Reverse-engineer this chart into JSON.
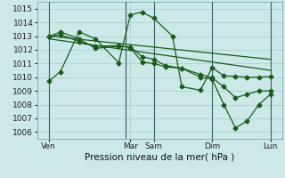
{
  "bg_color": "#cce8e8",
  "grid_color": "#aacccc",
  "line_color": "#1a5c1a",
  "vline_color": "#3a6060",
  "xlabel": "Pression niveau de la mer( hPa )",
  "ylim": [
    1005.5,
    1015.5
  ],
  "xlim": [
    0,
    10.5
  ],
  "yticks": [
    1006,
    1007,
    1008,
    1009,
    1010,
    1011,
    1012,
    1013,
    1014,
    1015
  ],
  "xtick_labels": [
    "Ven",
    "Mar",
    "Sam",
    "Dim",
    "Lun"
  ],
  "xtick_pos": [
    0.5,
    4.0,
    5.0,
    7.5,
    10.0
  ],
  "vlines_x": [
    0.5,
    3.8,
    5.0,
    7.5,
    10.0
  ],
  "lines": [
    {
      "x": [
        0.5,
        1.0,
        1.8,
        2.5,
        3.5,
        4.0,
        4.5,
        5.0,
        5.8,
        6.2,
        7.0,
        7.5,
        8.0,
        8.5,
        9.0,
        9.5,
        10.0
      ],
      "y": [
        1009.7,
        1010.4,
        1013.3,
        1012.8,
        1011.05,
        1014.55,
        1014.75,
        1014.3,
        1013.0,
        1009.3,
        1009.05,
        1010.7,
        1010.1,
        1010.05,
        1010.0,
        1010.0,
        1010.05
      ],
      "marker": true
    },
    {
      "x": [
        0.5,
        1.0,
        1.8,
        2.5,
        3.5,
        4.0,
        4.5,
        5.0,
        5.5,
        6.2,
        7.0,
        7.5,
        8.0,
        8.5,
        9.0,
        9.5,
        10.0
      ],
      "y": [
        1012.95,
        1013.1,
        1012.6,
        1012.25,
        1012.3,
        1012.15,
        1011.1,
        1011.0,
        1010.75,
        1010.65,
        1010.0,
        1009.85,
        1008.0,
        1006.3,
        1006.8,
        1008.0,
        1008.75
      ],
      "marker": true
    },
    {
      "x": [
        0.5,
        1.0,
        1.8,
        2.5,
        3.5,
        4.0,
        4.5,
        5.0,
        5.5,
        6.2,
        7.0,
        7.5,
        8.0,
        8.5,
        9.0,
        9.5,
        10.0
      ],
      "y": [
        1012.95,
        1013.3,
        1012.8,
        1012.1,
        1012.25,
        1012.2,
        1011.5,
        1011.3,
        1010.85,
        1010.65,
        1010.2,
        1009.95,
        1009.3,
        1008.5,
        1008.75,
        1009.0,
        1009.0
      ],
      "marker": true
    },
    {
      "x": [
        0.5,
        10.0
      ],
      "y": [
        1013.0,
        1011.3
      ],
      "marker": false
    },
    {
      "x": [
        0.5,
        10.0
      ],
      "y": [
        1012.8,
        1010.5
      ],
      "marker": false
    }
  ],
  "marker": "D",
  "marker_size": 2.5,
  "linewidth": 0.9,
  "fontsize_label": 7.5,
  "fontsize_tick": 6.5
}
